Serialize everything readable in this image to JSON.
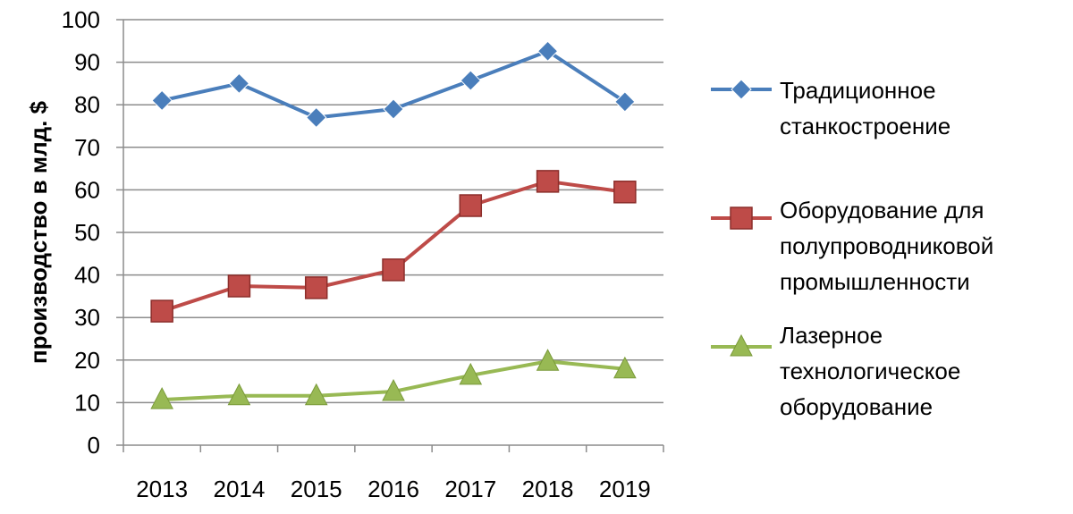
{
  "chart_data": {
    "type": "line",
    "title": "",
    "xlabel": "",
    "ylabel": "производство в млд. $",
    "ylim": [
      0,
      100
    ],
    "yticks": [
      "0",
      "10",
      "20",
      "30",
      "40",
      "50",
      "60",
      "70",
      "80",
      "90",
      "100"
    ],
    "categories": [
      "2013",
      "2014",
      "2015",
      "2016",
      "2017",
      "2018",
      "2019"
    ],
    "grid": true,
    "legend_position": "right",
    "series": [
      {
        "name": "Традиционное станкостроение",
        "legend_lines": [
          "Традиционное",
          "станкостроение"
        ],
        "color": "#4a7ebb",
        "marker": "diamond",
        "values": [
          81,
          85,
          77,
          79,
          85.7,
          92.6,
          80.7
        ]
      },
      {
        "name": "Оборудование для полупроводниковой промышленности",
        "legend_lines": [
          "Оборудование для",
          "полупроводниковой",
          "промышленности"
        ],
        "color": "#be4b48",
        "marker": "square",
        "values": [
          31.5,
          37.4,
          37,
          41.2,
          56.3,
          62,
          59.5
        ]
      },
      {
        "name": "Лазерное технологическое оборудование",
        "legend_lines": [
          "Лазерное",
          "технологическое",
          "оборудование"
        ],
        "color": "#98b954",
        "marker": "triangle",
        "values": [
          10.7,
          11.6,
          11.6,
          12.6,
          16.4,
          19.7,
          17.9
        ]
      }
    ]
  }
}
